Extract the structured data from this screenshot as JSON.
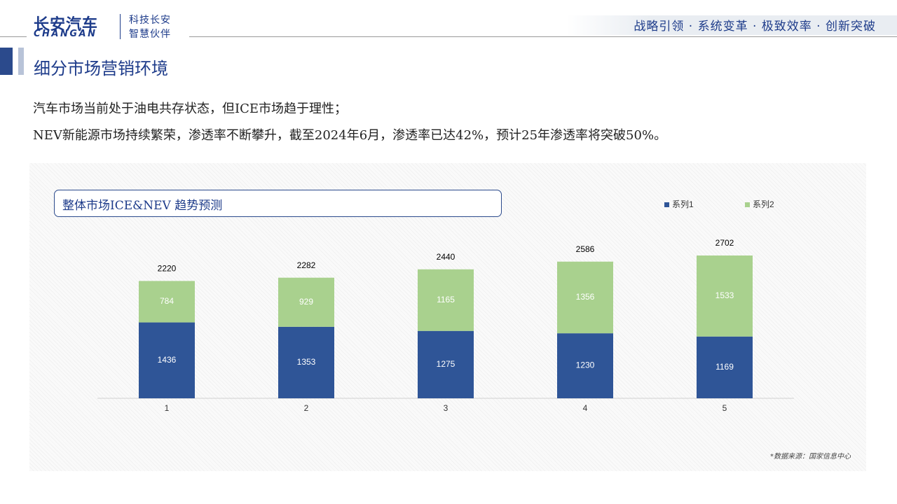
{
  "header": {
    "logo_cn": "长安汽车",
    "logo_en": "CHANGAN",
    "logo_sub1": "科技长安",
    "logo_sub2": "智慧伙伴",
    "slogan": "战略引领 · 系统变革 · 极致效率 · 创新突破"
  },
  "page_title": "细分市场营销环境",
  "description": {
    "line1": "汽车市场当前处于油电共存状态，但ICE市场趋于理性；",
    "line2": "NEV新能源市场持续繁荣，渗透率不断攀升，截至2024年6月，渗透率已达42%，预计25年渗透率将突破50%。"
  },
  "chart_box_title": "整体市场ICE&NEV   趋势预测",
  "source_note": "*数据来源：国家信息中心",
  "colors": {
    "series1": "#2f5597",
    "series2": "#a9d18e",
    "brand": "#1d3b8a"
  },
  "chart_data": {
    "type": "bar",
    "stacked": true,
    "categories": [
      "1",
      "2",
      "3",
      "4",
      "5"
    ],
    "series": [
      {
        "name": "系列1",
        "values": [
          1436,
          1353,
          1275,
          1230,
          1169
        ]
      },
      {
        "name": "系列2",
        "values": [
          784,
          929,
          1165,
          1356,
          1533
        ]
      }
    ],
    "totals": [
      2220,
      2282,
      2440,
      2586,
      2702
    ],
    "legend": "top-right",
    "grid": false,
    "ylim": [
      0,
      2702
    ]
  }
}
